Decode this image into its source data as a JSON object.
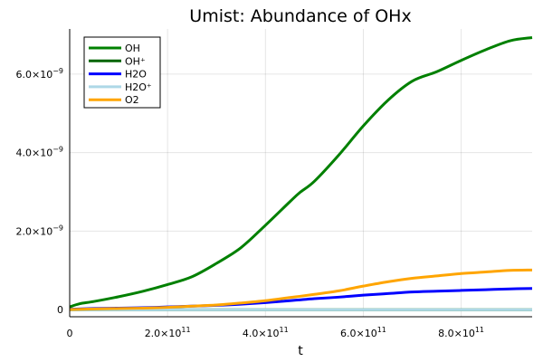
{
  "chart_data": {
    "type": "line",
    "title": "Umist: Abundance of OHx",
    "xlabel": "t",
    "ylabel": "",
    "xlim": [
      0,
      945000000000.0
    ],
    "ylim": [
      -1.8e-10,
      7.15e-09
    ],
    "grid": true,
    "legend_position": "top-left",
    "x_ticks": [
      {
        "value": 0,
        "mantissa": "0",
        "exponent": ""
      },
      {
        "value": 200000000000.0,
        "mantissa": "2.0×10",
        "exponent": "11"
      },
      {
        "value": 400000000000.0,
        "mantissa": "4.0×10",
        "exponent": "11"
      },
      {
        "value": 600000000000.0,
        "mantissa": "6.0×10",
        "exponent": "11"
      },
      {
        "value": 800000000000.0,
        "mantissa": "8.0×10",
        "exponent": "11"
      }
    ],
    "y_ticks": [
      {
        "value": 0,
        "mantissa": "0",
        "exponent": ""
      },
      {
        "value": 2e-09,
        "mantissa": "2.0×10",
        "exponent": "−9"
      },
      {
        "value": 4e-09,
        "mantissa": "4.0×10",
        "exponent": "−9"
      },
      {
        "value": 6e-09,
        "mantissa": "6.0×10",
        "exponent": "−9"
      }
    ],
    "x": [
      0,
      20000000000.0,
      50000000000.0,
      100000000000.0,
      150000000000.0,
      200000000000.0,
      250000000000.0,
      300000000000.0,
      350000000000.0,
      400000000000.0,
      450000000000.0,
      470000000000.0,
      500000000000.0,
      550000000000.0,
      600000000000.0,
      650000000000.0,
      700000000000.0,
      750000000000.0,
      800000000000.0,
      850000000000.0,
      900000000000.0,
      945000000000.0
    ],
    "series": [
      {
        "name": "OH",
        "color": "#008000",
        "values": [
          7e-11,
          1.5e-10,
          2.1e-10,
          3.3e-10,
          4.7e-10,
          6.4e-10,
          8.4e-10,
          1.18e-09,
          1.58e-09,
          2.15e-09,
          2.75e-09,
          2.98e-09,
          3.27e-09,
          3.94e-09,
          4.68e-09,
          5.33e-09,
          5.82e-09,
          6.06e-09,
          6.35e-09,
          6.62e-09,
          6.85e-09,
          6.93e-09
        ]
      },
      {
        "name": "OH⁺",
        "color": "#006400",
        "values": [
          0,
          0,
          0,
          0,
          0,
          0,
          0,
          0,
          0,
          0,
          0,
          0,
          0,
          0,
          0,
          0,
          0,
          0,
          0,
          0,
          0,
          0
        ]
      },
      {
        "name": "H2O",
        "color": "#0000ff",
        "values": [
          1e-11,
          2e-11,
          3e-11,
          4e-11,
          5e-11,
          7e-11,
          9e-11,
          1.1e-10,
          1.4e-10,
          1.8e-10,
          2.3e-10,
          2.5e-10,
          2.8e-10,
          3.2e-10,
          3.7e-10,
          4.1e-10,
          4.5e-10,
          4.7e-10,
          4.9e-10,
          5.1e-10,
          5.3e-10,
          5.4e-10
        ]
      },
      {
        "name": "H2O⁺",
        "color": "#add8e6",
        "values": [
          0,
          0,
          0,
          0,
          0,
          0,
          0,
          0,
          0,
          0,
          0,
          0,
          0,
          0,
          0,
          0,
          0,
          0,
          0,
          0,
          0,
          0
        ]
      },
      {
        "name": "O2",
        "color": "#ffa500",
        "values": [
          5e-12,
          1e-11,
          2e-11,
          3e-11,
          4e-11,
          6e-11,
          9e-11,
          1.2e-10,
          1.7e-10,
          2.3e-10,
          3.1e-10,
          3.4e-10,
          3.9e-10,
          4.8e-10,
          6e-10,
          7.1e-10,
          8e-10,
          8.6e-10,
          9.2e-10,
          9.6e-10,
          1e-09,
          1.01e-09
        ]
      }
    ]
  }
}
